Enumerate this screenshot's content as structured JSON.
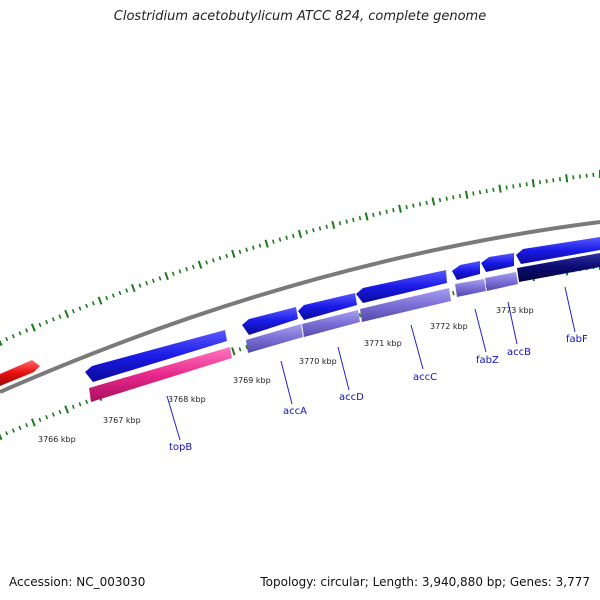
{
  "title": "Clostridium acetobutylicum ATCC 824, complete genome",
  "footer": {
    "accession": "Accession: NC_003030",
    "summary": "Topology: circular; Length: 3,940,880 bp; Genes: 3,777"
  },
  "colors": {
    "background": "#ffffff",
    "backbone": "#808080",
    "ticks": "#1a7a1a",
    "forward_cds": "#1a1ae6",
    "cds_product": "#7b6fd6",
    "rna": "#e8288c",
    "highlight_cds": "#e81010",
    "dark_cds": "#0a0a70",
    "label_text": "#1010c0"
  },
  "scale_labels": [
    "3766 kbp",
    "3767 kbp",
    "3768 kbp",
    "3769 kbp",
    "3770 kbp",
    "3771 kbp",
    "3772 kbp",
    "3773 kbp"
  ],
  "gene_labels": [
    "topB",
    "accA",
    "accD",
    "accC",
    "fabZ",
    "accB",
    "fabF"
  ]
}
